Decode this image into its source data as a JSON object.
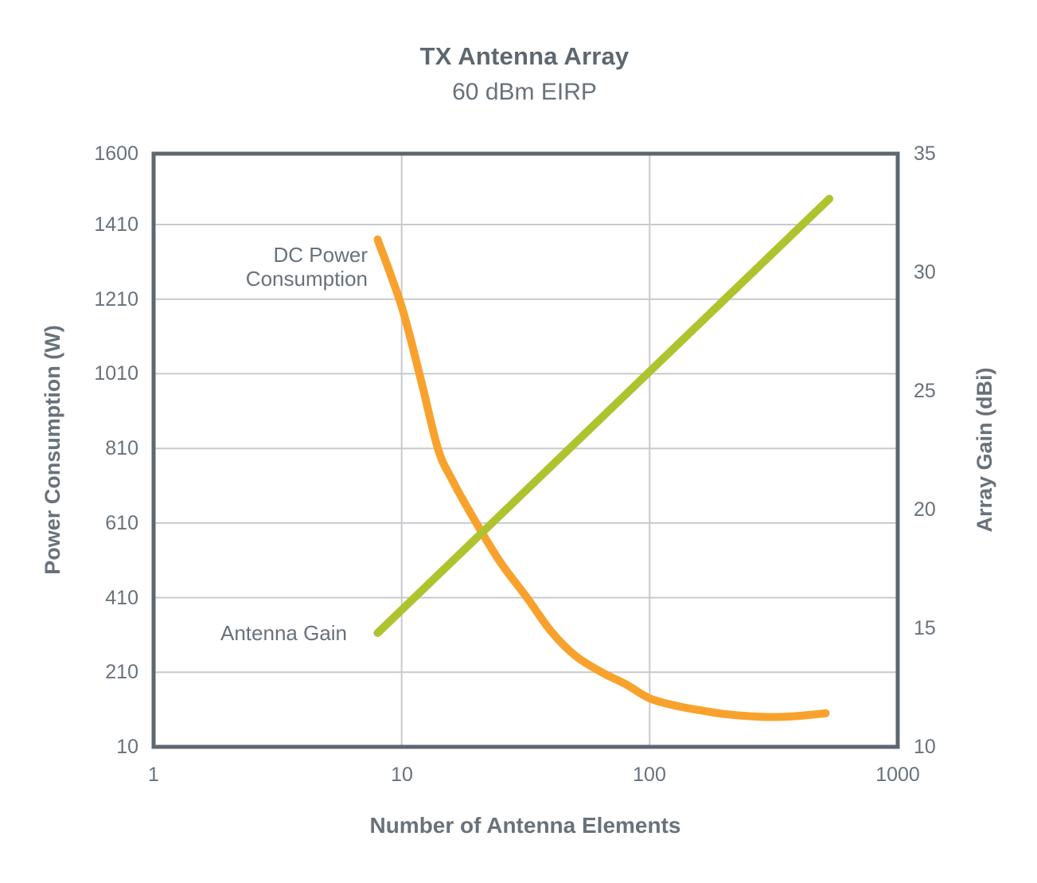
{
  "chart_data": {
    "type": "line",
    "title": "TX Antenna Array",
    "subtitle": "60 dBm EIRP",
    "xlabel": "Number of Antenna Elements",
    "x_scale": "log",
    "xlim": [
      1,
      1000
    ],
    "x_ticks": [
      1,
      10,
      100,
      1000
    ],
    "grid": {
      "h_values": [
        1410,
        1210,
        1010,
        810,
        610,
        410,
        210
      ],
      "v_values": [
        10,
        100
      ]
    },
    "axes_colors": {
      "frame": "#5d6770",
      "gridline": "#c6cace",
      "text": "#68727b"
    },
    "y_left": {
      "label": "Power Consumption (W)",
      "lim": [
        10,
        1600
      ],
      "ticks": [
        1600,
        1410,
        1210,
        1010,
        810,
        610,
        410,
        210,
        10
      ]
    },
    "y_right": {
      "label": "Array Gain (dBi)",
      "lim": [
        10,
        35
      ],
      "ticks": [
        35,
        30,
        25,
        20,
        15,
        10
      ]
    },
    "series": [
      {
        "name": "DC Power Consumption",
        "label_text": "DC Power\nConsumption",
        "axis": "left",
        "color": "#f8a22d",
        "points": [
          [
            8,
            1370
          ],
          [
            10,
            1190
          ],
          [
            12,
            990
          ],
          [
            14,
            810
          ],
          [
            16,
            725
          ],
          [
            20,
            610
          ],
          [
            25,
            505
          ],
          [
            32,
            410
          ],
          [
            40,
            320
          ],
          [
            50,
            255
          ],
          [
            64,
            210
          ],
          [
            80,
            178
          ],
          [
            100,
            140
          ],
          [
            128,
            120
          ],
          [
            160,
            108
          ],
          [
            200,
            98
          ],
          [
            256,
            92
          ],
          [
            320,
            90
          ],
          [
            400,
            93
          ],
          [
            512,
            100
          ]
        ]
      },
      {
        "name": "Antenna Gain",
        "label_text": "Antenna Gain",
        "axis": "right",
        "color": "#afc32f",
        "points": [
          [
            8,
            14.8
          ],
          [
            530,
            33.1
          ]
        ]
      }
    ]
  }
}
